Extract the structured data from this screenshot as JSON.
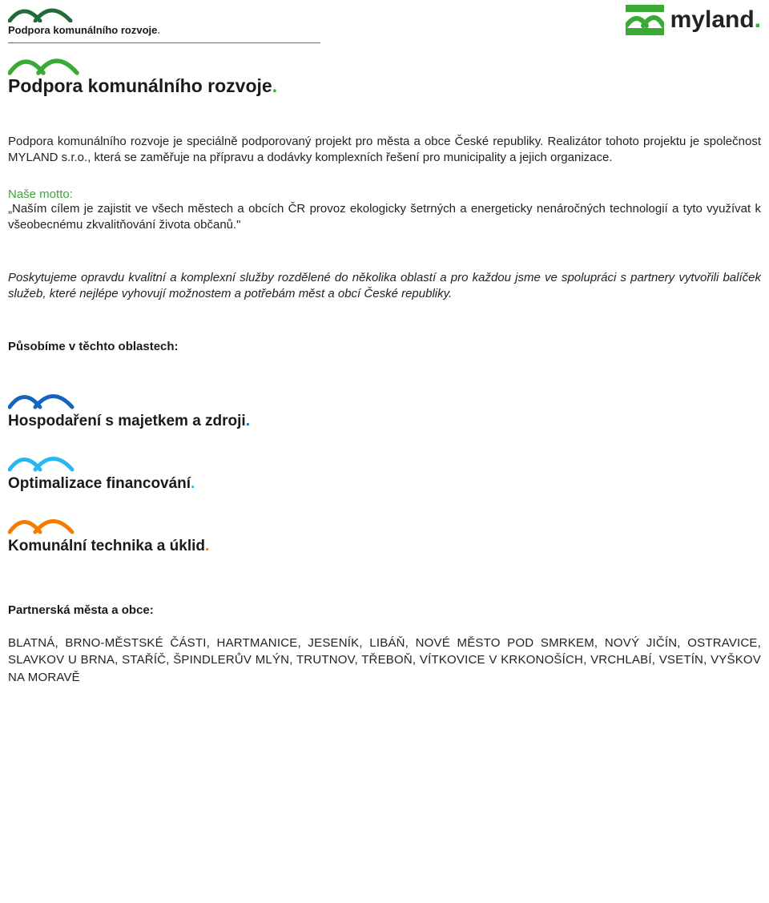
{
  "header": {
    "small_tagline": "Podpora komunálního rozvoje",
    "brand_name": "myland",
    "colors": {
      "green": "#3aa935",
      "dark": "#1a1a1a"
    }
  },
  "main": {
    "title": "Podpora komunálního rozvoje",
    "intro": "Podpora komunálního rozvoje je speciálně podporovaný projekt pro města a obce České republiky. Realizátor tohoto projektu je společnost MYLAND s.r.o., která se zaměřuje na přípravu a dodávky komplexních řešení pro municipality a jejich organizace.",
    "motto_label": "Naše motto:",
    "motto_text": "„Naším cílem je zajistit ve všech městech a obcích ČR provoz ekologicky šetrných a energeticky nenáročných technologií a tyto využívat k všeobecnému zkvalitňování života občanů.\"",
    "services_para": "Poskytujeme opravdu kvalitní a komplexní služby rozdělené do několika oblastí a pro každou jsme ve spolupráci s partnery vytvořili balíček služeb, které nejlépe vyhovují možnostem a potřebám měst a obcí České republiky.",
    "areas_heading": "Působíme v těchto oblastech:"
  },
  "areas": [
    {
      "title": "Hospodaření s majetkem a zdroji",
      "dot_color": "#1565c0",
      "arc_color": "#1565c0"
    },
    {
      "title": "Optimalizace financování",
      "dot_color": "#29b6f6",
      "arc_color": "#29b6f6"
    },
    {
      "title": "Komunální technika a úklid",
      "dot_color": "#f57c00",
      "arc_color": "#f57c00"
    }
  ],
  "partners": {
    "heading": "Partnerská města a obce:",
    "list": "BLATNÁ, BRNO-MĚSTSKÉ ČÁSTI, HARTMANICE, JESENÍK, LIBÁŇ, NOVÉ MĚSTO POD SMRKEM, NOVÝ JIČÍN, OSTRAVICE, SLAVKOV U BRNA, STAŘÍČ, ŠPINDLERŮV MLÝN, TRUTNOV, TŘEBOŇ, VÍTKOVICE V KRKONOŠÍCH, VRCHLABÍ, VSETÍN, VYŠKOV NA MORAVĚ"
  }
}
